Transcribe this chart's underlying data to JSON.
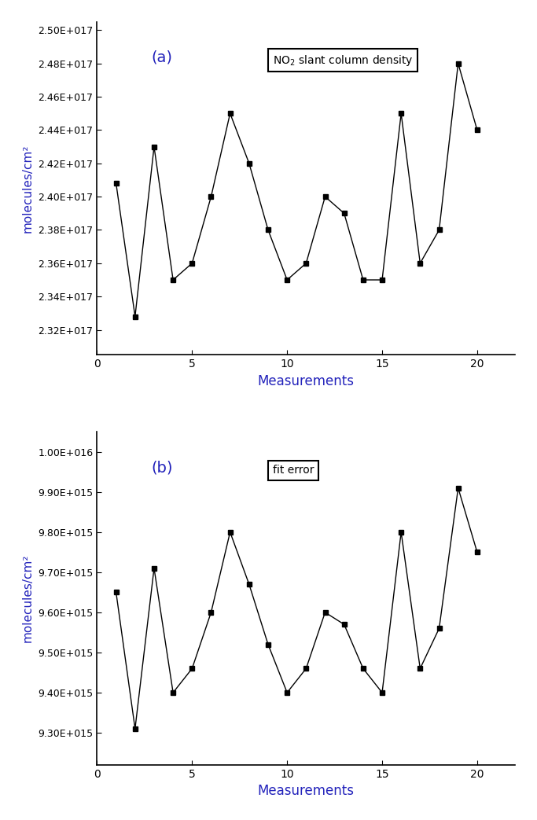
{
  "chart_a": {
    "x": [
      1,
      2,
      3,
      4,
      5,
      6,
      7,
      8,
      9,
      10,
      11,
      12,
      13,
      14,
      15,
      16,
      17,
      18,
      19,
      20
    ],
    "y": [
      2.408e+17,
      2.328e+17,
      2.43e+17,
      2.35e+17,
      2.36e+17,
      2.4e+17,
      2.45e+17,
      2.42e+17,
      2.38e+17,
      2.35e+17,
      2.36e+17,
      2.4e+17,
      2.39e+17,
      2.35e+17,
      2.35e+17,
      2.45e+17,
      2.36e+17,
      2.38e+17,
      2.48e+17,
      2.44e+17
    ],
    "ylabel": "molecules/cm²",
    "xlabel": "Measurements",
    "legend": "NO₂ slant column density",
    "panel_label": "(a)",
    "ylim": [
      2.305e+17,
      2.505e+17
    ],
    "yticks": [
      2.32e+17,
      2.34e+17,
      2.36e+17,
      2.38e+17,
      2.4e+17,
      2.42e+17,
      2.44e+17,
      2.46e+17,
      2.48e+17,
      2.5e+17
    ],
    "ytick_labels": [
      "2.32E+017",
      "2.34E+017",
      "2.36E+017",
      "2.38E+017",
      "2.40E+017",
      "2.42E+017",
      "2.44E+017",
      "2.46E+017",
      "2.48E+017",
      "2.50E+017"
    ]
  },
  "chart_b": {
    "x": [
      1,
      2,
      3,
      4,
      5,
      6,
      7,
      8,
      9,
      10,
      11,
      12,
      13,
      14,
      15,
      16,
      17,
      18,
      19,
      20
    ],
    "y": [
      9650000000000000.0,
      9310000000000000.0,
      9710000000000000.0,
      9400000000000000.0,
      9460000000000000.0,
      9600000000000000.0,
      9800000000000000.0,
      9670000000000000.0,
      9520000000000000.0,
      9400000000000000.0,
      9460000000000000.0,
      9600000000000000.0,
      9570000000000000.0,
      9460000000000000.0,
      9400000000000000.0,
      9800000000000000.0,
      9460000000000000.0,
      9560000000000000.0,
      9910000000000000.0,
      9750000000000000.0
    ],
    "ylabel": "molecules/cm²",
    "xlabel": "Measurements",
    "legend": "fit error",
    "panel_label": "(b)",
    "ylim": [
      9220000000000000.0,
      1.005e+16
    ],
    "yticks": [
      9300000000000000.0,
      9400000000000000.0,
      9500000000000000.0,
      9600000000000000.0,
      9700000000000000.0,
      9800000000000000.0,
      9900000000000000.0,
      1e+16
    ],
    "ytick_labels": [
      "9.30E+015",
      "9.40E+015",
      "9.50E+015",
      "9.60E+015",
      "9.70E+015",
      "9.80E+015",
      "9.90E+015",
      "1.00E+016"
    ]
  },
  "line_color": "#000000",
  "marker": "s",
  "marker_size": 5,
  "marker_color": "#000000",
  "text_color": "#2222bb",
  "axis_color": "#000000",
  "background_color": "#ffffff",
  "xlim": [
    0,
    22
  ],
  "xticks": [
    0,
    5,
    10,
    15,
    20
  ]
}
